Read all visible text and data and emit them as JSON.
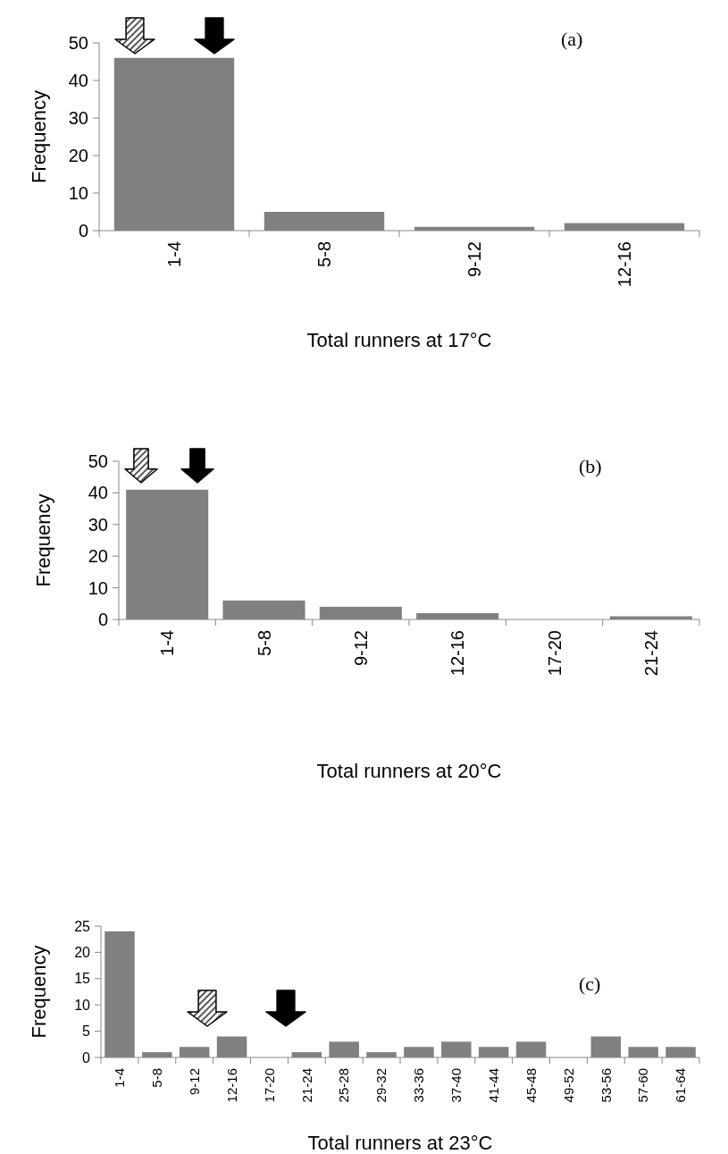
{
  "chart_data": [
    {
      "type": "bar",
      "categories": [
        "1-4",
        "5-8",
        "9-12",
        "12-16"
      ],
      "values": [
        46,
        5,
        1,
        2
      ],
      "color": "#808080",
      "ylim": [
        0,
        50
      ],
      "yticks": [
        0,
        10,
        20,
        30,
        40,
        50
      ],
      "xlabel": "Total runners at 17°C",
      "ylabel": "Frequency",
      "annotations": [
        "(a)"
      ]
    },
    {
      "type": "bar",
      "categories": [
        "1-4",
        "5-8",
        "9-12",
        "12-16",
        "17-20",
        "21-24"
      ],
      "values": [
        41,
        6,
        4,
        2,
        0,
        1
      ],
      "color": "#808080",
      "ylim": [
        0,
        50
      ],
      "yticks": [
        0,
        10,
        20,
        30,
        40,
        50
      ],
      "xlabel": "Total runners at 20°C",
      "ylabel": "Frequency",
      "annotations": [
        "(b)"
      ]
    },
    {
      "type": "bar",
      "categories": [
        "1-4",
        "5-8",
        "9-12",
        "12-16",
        "17-20",
        "21-24",
        "25-28",
        "29-32",
        "33-36",
        "37-40",
        "41-44",
        "45-48",
        "49-52",
        "53-56",
        "57-60",
        "61-64"
      ],
      "values": [
        24,
        1,
        2,
        4,
        0,
        1,
        3,
        1,
        2,
        3,
        2,
        3,
        0,
        4,
        2,
        2
      ],
      "color": "#808080",
      "ylim": [
        0,
        25
      ],
      "yticks": [
        0,
        5,
        10,
        15,
        20,
        25
      ],
      "xlabel": "Total runners at 23°C",
      "ylabel": "Frequency",
      "annotations": [
        "(c)"
      ]
    }
  ]
}
